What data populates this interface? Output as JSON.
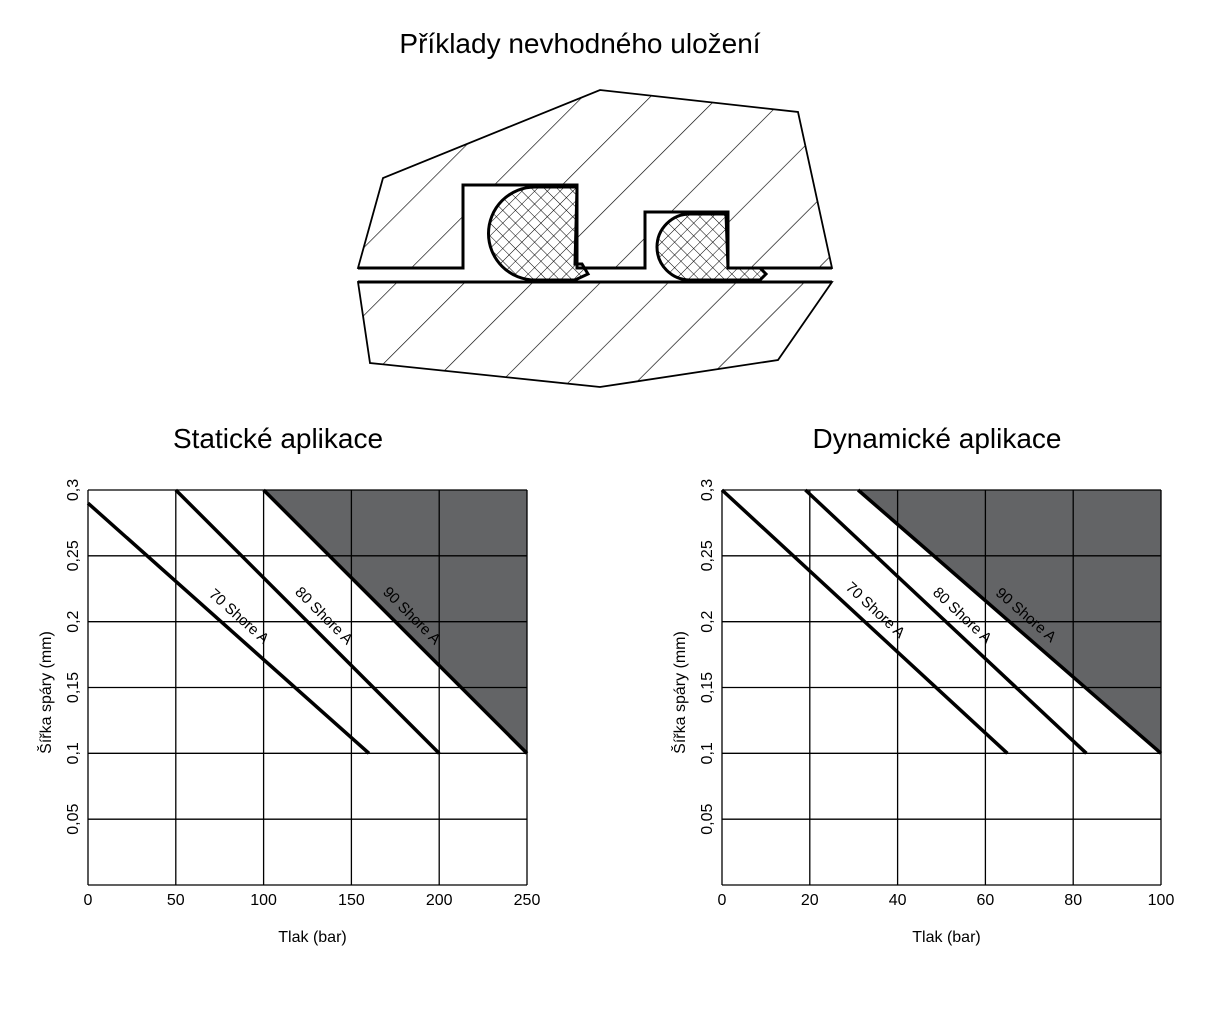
{
  "title": "Příklady nevhodného uložení",
  "chart_data": [
    {
      "type": "line",
      "title": "Statické aplikace",
      "xlabel": "Tlak (bar)",
      "ylabel": "Šířka spáry (mm)",
      "xlim": [
        0,
        250
      ],
      "ylim": [
        0,
        0.3
      ],
      "x_ticks": [
        "0",
        "50",
        "100",
        "150",
        "200",
        "250"
      ],
      "y_ticks": [
        "0,05",
        "0,1",
        "0,15",
        "0,2",
        "0,25",
        "0,3"
      ],
      "grid": true,
      "series": [
        {
          "name": "70 Shore A",
          "x": [
            0,
            160
          ],
          "y": [
            0.29,
            0.1
          ]
        },
        {
          "name": "80 Shore A",
          "x": [
            50,
            200
          ],
          "y": [
            0.3,
            0.1
          ]
        },
        {
          "name": "90 Shore A",
          "x": [
            100,
            250
          ],
          "y": [
            0.3,
            0.1
          ]
        }
      ],
      "shaded_region": {
        "x": [
          100,
          250,
          250
        ],
        "y": [
          0.3,
          0.3,
          0.1
        ],
        "color": "#636466"
      }
    },
    {
      "type": "line",
      "title": "Dynamické aplikace",
      "xlabel": "Tlak (bar)",
      "ylabel": "Šířka spáry (mm)",
      "xlim": [
        0,
        100
      ],
      "ylim": [
        0,
        0.3
      ],
      "x_ticks": [
        "0",
        "20",
        "40",
        "60",
        "80",
        "100"
      ],
      "y_ticks": [
        "0,05",
        "0,1",
        "0,15",
        "0,2",
        "0,25",
        "0,3"
      ],
      "grid": true,
      "series": [
        {
          "name": "70 Shore A",
          "x": [
            0,
            65
          ],
          "y": [
            0.3,
            0.1
          ]
        },
        {
          "name": "80 Shore A",
          "x": [
            19,
            83
          ],
          "y": [
            0.3,
            0.1
          ]
        },
        {
          "name": "90 Shore A",
          "x": [
            31,
            100
          ],
          "y": [
            0.3,
            0.1
          ]
        }
      ],
      "shaded_region": {
        "x": [
          31,
          100,
          100
        ],
        "y": [
          0.3,
          0.3,
          0.1
        ],
        "color": "#636466"
      }
    }
  ],
  "colors": {
    "shade": "#636466",
    "line": "#000000",
    "hatch": "#000000"
  }
}
